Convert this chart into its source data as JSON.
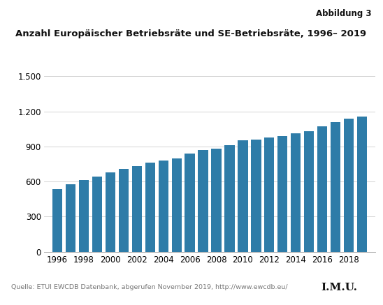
{
  "title": "Anzahl Europäischer Betriebsräte und SE-Betriebsräte, 1996– 2019",
  "years": [
    1996,
    1997,
    1998,
    1999,
    2000,
    2001,
    2002,
    2003,
    2004,
    2005,
    2006,
    2007,
    2008,
    2009,
    2010,
    2011,
    2012,
    2013,
    2014,
    2015,
    2016,
    2017,
    2018,
    2019
  ],
  "values": [
    535,
    575,
    610,
    640,
    680,
    710,
    730,
    760,
    780,
    800,
    840,
    870,
    880,
    910,
    955,
    960,
    975,
    990,
    1010,
    1030,
    1070,
    1110,
    1140,
    1155
  ],
  "bar_color": "#2e7ca8",
  "background_color": "#ffffff",
  "fig_header_text": "Abbildung 3",
  "footer_text": "Quelle: ETUI EWCDB Datenbank, abgerufen November 2019, http://www.ewcdb.eu/",
  "imu_text": "I.M.U.",
  "yticks": [
    0,
    300,
    600,
    900,
    1200,
    1500
  ],
  "ylim": [
    0,
    1500
  ],
  "header_bar_color": "#d0d8e0",
  "footer_line_color": "#aaaaaa",
  "imu_bar_color": "#e06020"
}
